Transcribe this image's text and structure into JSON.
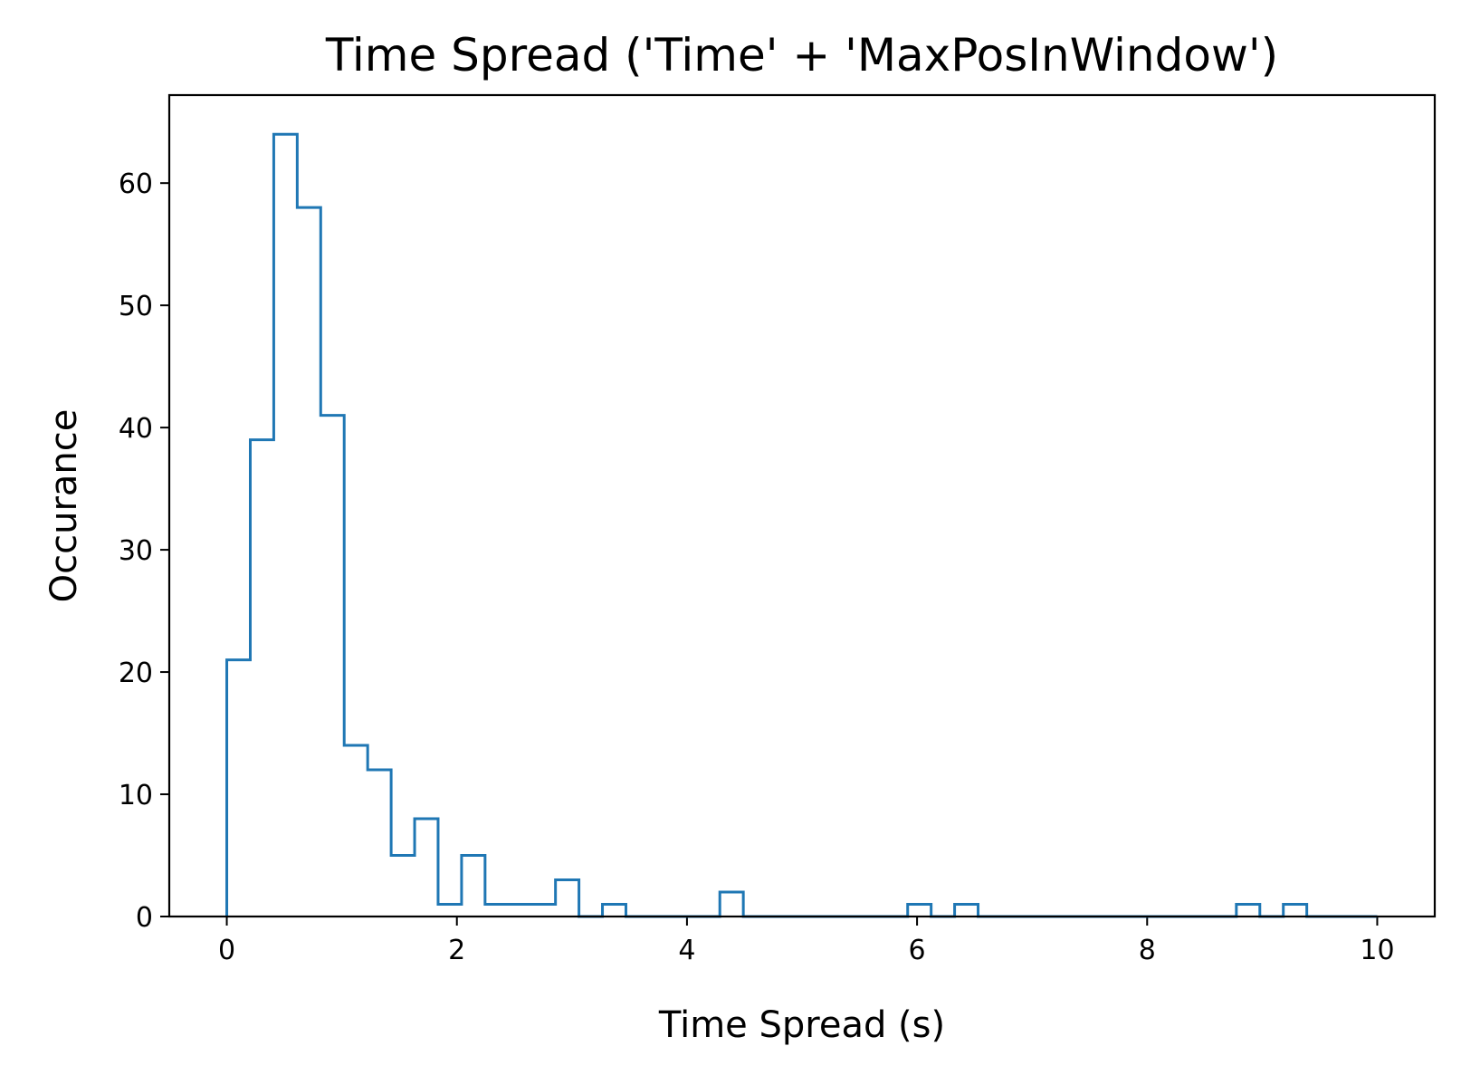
{
  "chart_data": {
    "type": "bar",
    "histtype": "step",
    "title": "Time Spread ('Time' + 'MaxPosInWindow')",
    "xlabel": "Time Spread (s)",
    "ylabel": "Occurance",
    "xlim": [
      -0.5,
      10.5
    ],
    "ylim": [
      0,
      67.2
    ],
    "grid": false,
    "line_color": "#1f77b4",
    "bin_edges": [
      0.0,
      0.2041,
      0.4082,
      0.6122,
      0.8163,
      1.0204,
      1.2245,
      1.4286,
      1.6327,
      1.8367,
      2.0408,
      2.2449,
      2.449,
      2.6531,
      2.8571,
      3.0612,
      3.2653,
      3.4694,
      3.6735,
      3.8776,
      4.0816,
      4.2857,
      4.4898,
      4.6939,
      4.898,
      5.102,
      5.3061,
      5.5102,
      5.7143,
      5.9184,
      6.1224,
      6.3265,
      6.5306,
      6.7347,
      6.9388,
      7.1429,
      7.3469,
      7.551,
      7.7551,
      7.9592,
      8.1633,
      8.3673,
      8.5714,
      8.7755,
      8.9796,
      9.1837,
      9.3878,
      9.5918,
      9.7959,
      10.0
    ],
    "counts": [
      21,
      39,
      64,
      58,
      41,
      14,
      12,
      5,
      8,
      1,
      5,
      1,
      1,
      1,
      3,
      0,
      1,
      0,
      0,
      0,
      0,
      2,
      0,
      0,
      0,
      0,
      0,
      0,
      0,
      1,
      0,
      1,
      0,
      0,
      0,
      0,
      0,
      0,
      0,
      0,
      0,
      0,
      0,
      1,
      0,
      1,
      0,
      0,
      0
    ],
    "x_ticks": [
      {
        "value": 0,
        "label": "0"
      },
      {
        "value": 2,
        "label": "2"
      },
      {
        "value": 4,
        "label": "4"
      },
      {
        "value": 6,
        "label": "6"
      },
      {
        "value": 8,
        "label": "8"
      },
      {
        "value": 10,
        "label": "10"
      }
    ],
    "y_ticks": [
      {
        "value": 0,
        "label": "0"
      },
      {
        "value": 10,
        "label": "10"
      },
      {
        "value": 20,
        "label": "20"
      },
      {
        "value": 30,
        "label": "30"
      },
      {
        "value": 40,
        "label": "40"
      },
      {
        "value": 50,
        "label": "50"
      },
      {
        "value": 60,
        "label": "60"
      }
    ]
  }
}
